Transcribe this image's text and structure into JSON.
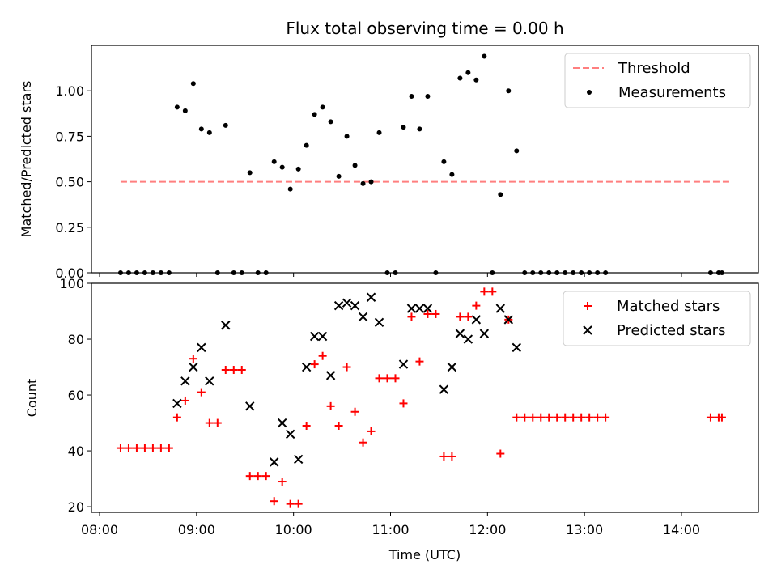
{
  "title": "Flux total observing time = 0.00 h",
  "chart_data": [
    {
      "type": "scatter",
      "ylabel": "Matched/Predicted stars",
      "xlabel": "",
      "xlim": [
        "08:00",
        "14:50"
      ],
      "ylim": [
        0,
        1.25
      ],
      "x_ticks": [
        "08:00",
        "09:00",
        "10:00",
        "11:00",
        "12:00",
        "13:00",
        "14:00"
      ],
      "y_ticks": [
        "0.00",
        "0.25",
        "0.50",
        "0.75",
        "1.00"
      ],
      "legend": {
        "position": "top-right",
        "entries": [
          "Threshold",
          "Measurements"
        ]
      },
      "threshold": {
        "name": "Threshold",
        "value": 0.5,
        "x_range": [
          "08:13",
          "14:30"
        ],
        "color": "#ff7f7f"
      },
      "series": [
        {
          "name": "Measurements",
          "color": "#000000",
          "points": [
            [
              "08:13",
              0
            ],
            [
              "08:18",
              0
            ],
            [
              "08:23",
              0
            ],
            [
              "08:28",
              0
            ],
            [
              "08:33",
              0
            ],
            [
              "08:38",
              0
            ],
            [
              "08:43",
              0
            ],
            [
              "08:48",
              0.91
            ],
            [
              "08:53",
              0.89
            ],
            [
              "08:58",
              1.04
            ],
            [
              "09:03",
              0.79
            ],
            [
              "09:08",
              0.77
            ],
            [
              "09:13",
              0
            ],
            [
              "09:18",
              0.81
            ],
            [
              "09:23",
              0
            ],
            [
              "09:28",
              0
            ],
            [
              "09:33",
              0.55
            ],
            [
              "09:38",
              0
            ],
            [
              "09:43",
              0
            ],
            [
              "09:48",
              0.61
            ],
            [
              "09:53",
              0.58
            ],
            [
              "09:58",
              0.46
            ],
            [
              "10:03",
              0.57
            ],
            [
              "10:08",
              0.7
            ],
            [
              "10:13",
              0.87
            ],
            [
              "10:18",
              0.91
            ],
            [
              "10:23",
              0.83
            ],
            [
              "10:28",
              0.53
            ],
            [
              "10:33",
              0.75
            ],
            [
              "10:38",
              0.59
            ],
            [
              "10:43",
              0.49
            ],
            [
              "10:48",
              0.5
            ],
            [
              "10:53",
              0.77
            ],
            [
              "10:58",
              0
            ],
            [
              "11:03",
              0
            ],
            [
              "11:08",
              0.8
            ],
            [
              "11:13",
              0.97
            ],
            [
              "11:18",
              0.79
            ],
            [
              "11:23",
              0.97
            ],
            [
              "11:28",
              0
            ],
            [
              "11:33",
              0.61
            ],
            [
              "11:38",
              0.54
            ],
            [
              "11:43",
              1.07
            ],
            [
              "11:48",
              1.1
            ],
            [
              "11:53",
              1.06
            ],
            [
              "11:58",
              1.19
            ],
            [
              "12:03",
              0
            ],
            [
              "12:08",
              0.43
            ],
            [
              "12:13",
              1.0
            ],
            [
              "12:18",
              0.67
            ],
            [
              "12:23",
              0
            ],
            [
              "12:28",
              0
            ],
            [
              "12:33",
              0
            ],
            [
              "12:38",
              0
            ],
            [
              "12:43",
              0
            ],
            [
              "12:48",
              0
            ],
            [
              "12:53",
              0
            ],
            [
              "12:58",
              0
            ],
            [
              "13:03",
              0
            ],
            [
              "13:08",
              0
            ],
            [
              "13:13",
              0
            ],
            [
              "14:18",
              0
            ],
            [
              "14:23",
              0
            ],
            [
              "14:25",
              0
            ]
          ]
        }
      ]
    },
    {
      "type": "scatter",
      "ylabel": "Count",
      "xlabel": "Time (UTC)",
      "xlim": [
        "08:00",
        "14:50"
      ],
      "ylim": [
        18,
        100
      ],
      "x_ticks": [
        "08:00",
        "09:00",
        "10:00",
        "11:00",
        "12:00",
        "13:00",
        "14:00"
      ],
      "y_ticks": [
        "20",
        "40",
        "60",
        "80",
        "100"
      ],
      "legend": {
        "position": "top-right",
        "entries": [
          "Matched stars",
          "Predicted stars"
        ]
      },
      "series": [
        {
          "name": "Matched stars",
          "marker": "+",
          "color": "#ff0000",
          "points": [
            [
              "08:13",
              41
            ],
            [
              "08:18",
              41
            ],
            [
              "08:23",
              41
            ],
            [
              "08:28",
              41
            ],
            [
              "08:33",
              41
            ],
            [
              "08:38",
              41
            ],
            [
              "08:43",
              41
            ],
            [
              "08:48",
              52
            ],
            [
              "08:53",
              58
            ],
            [
              "08:58",
              73
            ],
            [
              "09:03",
              61
            ],
            [
              "09:08",
              50
            ],
            [
              "09:13",
              50
            ],
            [
              "09:18",
              69
            ],
            [
              "09:23",
              69
            ],
            [
              "09:28",
              69
            ],
            [
              "09:33",
              31
            ],
            [
              "09:38",
              31
            ],
            [
              "09:43",
              31
            ],
            [
              "09:48",
              22
            ],
            [
              "09:53",
              29
            ],
            [
              "09:58",
              21
            ],
            [
              "10:03",
              21
            ],
            [
              "10:08",
              49
            ],
            [
              "10:13",
              71
            ],
            [
              "10:18",
              74
            ],
            [
              "10:23",
              56
            ],
            [
              "10:28",
              49
            ],
            [
              "10:33",
              70
            ],
            [
              "10:38",
              54
            ],
            [
              "10:43",
              43
            ],
            [
              "10:48",
              47
            ],
            [
              "10:53",
              66
            ],
            [
              "10:58",
              66
            ],
            [
              "11:03",
              66
            ],
            [
              "11:08",
              57
            ],
            [
              "11:13",
              88
            ],
            [
              "11:18",
              72
            ],
            [
              "11:23",
              89
            ],
            [
              "11:28",
              89
            ],
            [
              "11:33",
              38
            ],
            [
              "11:38",
              38
            ],
            [
              "11:43",
              88
            ],
            [
              "11:48",
              88
            ],
            [
              "11:53",
              92
            ],
            [
              "11:58",
              97
            ],
            [
              "12:03",
              97
            ],
            [
              "12:08",
              39
            ],
            [
              "12:13",
              87
            ],
            [
              "12:18",
              52
            ],
            [
              "12:23",
              52
            ],
            [
              "12:28",
              52
            ],
            [
              "12:33",
              52
            ],
            [
              "12:38",
              52
            ],
            [
              "12:43",
              52
            ],
            [
              "12:48",
              52
            ],
            [
              "12:53",
              52
            ],
            [
              "12:58",
              52
            ],
            [
              "13:03",
              52
            ],
            [
              "13:08",
              52
            ],
            [
              "13:13",
              52
            ],
            [
              "14:18",
              52
            ],
            [
              "14:23",
              52
            ],
            [
              "14:25",
              52
            ]
          ]
        },
        {
          "name": "Predicted stars",
          "marker": "x",
          "color": "#000000",
          "points": [
            [
              "08:48",
              57
            ],
            [
              "08:53",
              65
            ],
            [
              "08:58",
              70
            ],
            [
              "09:03",
              77
            ],
            [
              "09:08",
              65
            ],
            [
              "09:18",
              85
            ],
            [
              "09:33",
              56
            ],
            [
              "09:48",
              36
            ],
            [
              "09:53",
              50
            ],
            [
              "09:58",
              46
            ],
            [
              "10:03",
              37
            ],
            [
              "10:08",
              70
            ],
            [
              "10:13",
              81
            ],
            [
              "10:18",
              81
            ],
            [
              "10:23",
              67
            ],
            [
              "10:28",
              92
            ],
            [
              "10:33",
              93
            ],
            [
              "10:38",
              92
            ],
            [
              "10:43",
              88
            ],
            [
              "10:48",
              95
            ],
            [
              "10:53",
              86
            ],
            [
              "11:08",
              71
            ],
            [
              "11:13",
              91
            ],
            [
              "11:18",
              91
            ],
            [
              "11:23",
              91
            ],
            [
              "11:33",
              62
            ],
            [
              "11:38",
              70
            ],
            [
              "11:43",
              82
            ],
            [
              "11:48",
              80
            ],
            [
              "11:53",
              87
            ],
            [
              "11:58",
              82
            ],
            [
              "12:08",
              91
            ],
            [
              "12:13",
              87
            ],
            [
              "12:18",
              77
            ]
          ]
        }
      ]
    }
  ]
}
